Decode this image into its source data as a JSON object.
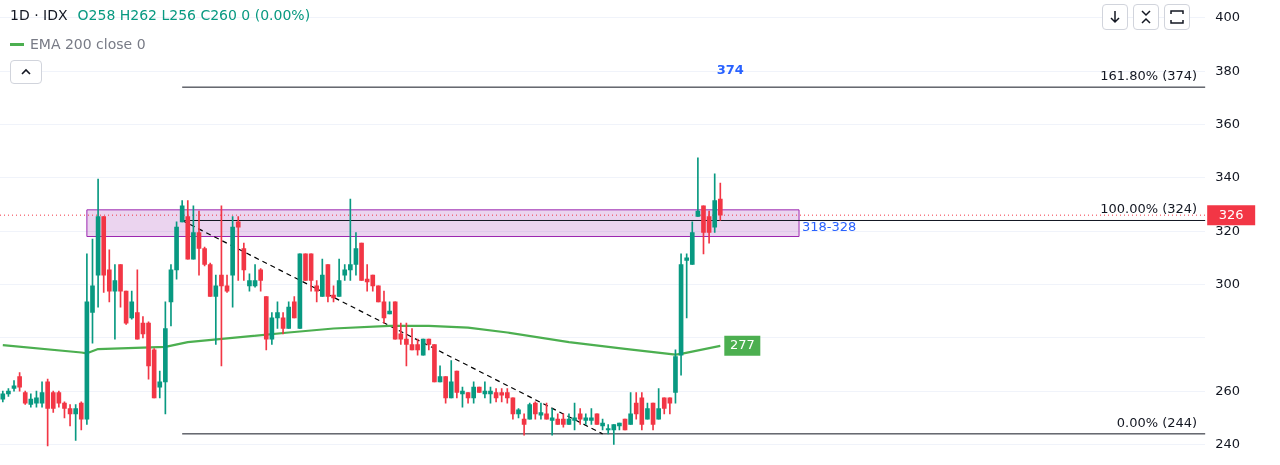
{
  "chart_data": {
    "type": "candlestick",
    "title": "1D · IDX",
    "subtitle": "O258 H262 L256 C260 0 (0.00%)",
    "categories": [
      null,
      null,
      null,
      null,
      null,
      null,
      null,
      null,
      null,
      null,
      null,
      null,
      null,
      null,
      null,
      null,
      null,
      null,
      null,
      null,
      null,
      null,
      null,
      null,
      null,
      null,
      null,
      null,
      null,
      null,
      null,
      null,
      null,
      null,
      null,
      null,
      null,
      null,
      null,
      null,
      null,
      null,
      null,
      null,
      null,
      null,
      null,
      null,
      null,
      null,
      null,
      null,
      null,
      null,
      null,
      null,
      null,
      null,
      null,
      null,
      null,
      null,
      null,
      null,
      null,
      null,
      null,
      null,
      null,
      null,
      null,
      null,
      null,
      null,
      null,
      null,
      null,
      null,
      null,
      null,
      null,
      null,
      null,
      null,
      null,
      null,
      null,
      null,
      null,
      null,
      null,
      null,
      null,
      null,
      null,
      null,
      null,
      null,
      null,
      null,
      null,
      null,
      null,
      null,
      null,
      null,
      null,
      null,
      null,
      null,
      null,
      null,
      null,
      null,
      null,
      null,
      null,
      null,
      null,
      null,
      null,
      null,
      null,
      null,
      null,
      null,
      null,
      null,
      null,
      null,
      null,
      null,
      null,
      null,
      null,
      null,
      null,
      null,
      null,
      null,
      null,
      null,
      null,
      null,
      null,
      null,
      null,
      null,
      null,
      null,
      null,
      null,
      null,
      null,
      null,
      null,
      null,
      null,
      null,
      null,
      null,
      null,
      null,
      null,
      null,
      null,
      null,
      null,
      null,
      null,
      null,
      null,
      null,
      null,
      null,
      null,
      null,
      null,
      null,
      null,
      null,
      null,
      null,
      null,
      null,
      null,
      null,
      null,
      null,
      null,
      null,
      null,
      null,
      null,
      null,
      null,
      null,
      null,
      null,
      null,
      null,
      null,
      null,
      null,
      null,
      null,
      null,
      null,
      null,
      null,
      null,
      null,
      null,
      null,
      null
    ],
    "ohlc": [
      [
        257,
        260,
        256,
        259
      ],
      [
        259,
        261,
        258,
        260
      ],
      [
        261,
        264,
        260,
        262
      ],
      [
        265.5,
        267,
        260,
        261.5
      ],
      [
        259.5,
        260,
        255,
        255.5
      ],
      [
        255,
        259,
        254,
        257
      ],
      [
        255.5,
        260,
        254,
        257.5
      ],
      [
        255.5,
        263.5,
        254,
        259.5
      ],
      [
        263.5,
        264.5,
        239.5,
        253.5
      ],
      [
        259.5,
        260,
        252,
        253.5
      ],
      [
        259.5,
        260,
        254,
        255.5
      ],
      [
        255.5,
        256,
        250,
        253.5
      ],
      [
        253.5,
        255,
        247,
        251.5
      ],
      [
        251.5,
        255,
        241.5,
        253.5
      ],
      [
        255.5,
        256,
        245.5,
        249.5
      ],
      [
        249.5,
        311.5,
        247.5,
        293.5
      ],
      [
        289.5,
        317,
        278,
        299.5
      ],
      [
        303.5,
        339.5,
        291.5,
        325.5
      ],
      [
        325.5,
        325.5,
        297,
        303.5
      ],
      [
        305.5,
        313,
        293.5,
        297.5
      ],
      [
        297.5,
        307.5,
        279.5,
        301.5
      ],
      [
        307.5,
        307.5,
        291.5,
        297.5
      ],
      [
        297.5,
        297.5,
        285,
        285.5
      ],
      [
        287.5,
        297.5,
        287,
        293.5
      ],
      [
        289.5,
        305.5,
        279.5,
        279.5
      ],
      [
        285.5,
        288,
        280,
        281.5
      ],
      [
        285.5,
        286,
        264.5,
        269.5
      ],
      [
        275.5,
        276,
        257.5,
        257.5
      ],
      [
        261.5,
        267.5,
        257.5,
        263.5
      ],
      [
        263.5,
        293.5,
        251.5,
        283.5
      ],
      [
        293.5,
        307.5,
        284.5,
        305.5
      ],
      [
        305.5,
        323.5,
        302,
        321.5
      ],
      [
        323.5,
        331.5,
        323.5,
        329.5
      ],
      [
        325.5,
        331.5,
        309.5,
        309.5
      ],
      [
        309.5,
        329.5,
        309.5,
        319.5
      ],
      [
        319.5,
        327.5,
        303.5,
        313.5
      ],
      [
        313.5,
        314,
        307,
        307.5
      ],
      [
        307.5,
        308,
        295.5,
        295.5
      ],
      [
        295.5,
        303.5,
        277.5,
        299.5
      ],
      [
        303.5,
        329.5,
        269.5,
        299.5
      ],
      [
        299.5,
        303.5,
        297,
        297.5
      ],
      [
        303.5,
        325.5,
        291.5,
        321.5
      ],
      [
        323.5,
        325.5,
        301.5,
        321.5
      ],
      [
        313.5,
        315.5,
        301.5,
        305.5
      ],
      [
        299.5,
        304,
        297.5,
        301.5
      ],
      [
        299.5,
        307.5,
        299,
        301.5
      ],
      [
        305.5,
        306,
        297.5,
        301.5
      ],
      [
        295.5,
        295.5,
        275.5,
        279.5
      ],
      [
        279.5,
        289.5,
        277.5,
        287.5
      ],
      [
        287.5,
        293.5,
        283.5,
        289.5
      ],
      [
        287.5,
        289.5,
        281.5,
        283.5
      ],
      [
        283.5,
        293.5,
        283.5,
        291.5
      ],
      [
        293.5,
        295.5,
        287.5,
        287.5
      ],
      [
        283.5,
        311.5,
        283.5,
        311.5
      ],
      [
        311.5,
        311.5,
        301.5,
        301.5
      ],
      [
        311.5,
        311.5,
        297.5,
        301.5
      ],
      [
        299.5,
        301.5,
        293.5,
        297.5
      ],
      [
        295.5,
        309.5,
        295.5,
        303.5
      ],
      [
        307.5,
        307.5,
        293.5,
        295.5
      ],
      [
        296,
        299.5,
        293.5,
        295
      ],
      [
        295.5,
        309.5,
        295.5,
        301.5
      ],
      [
        303.5,
        307.5,
        301.5,
        305.5
      ],
      [
        305.5,
        332,
        301.5,
        307.5
      ],
      [
        307.5,
        319.5,
        303.5,
        313.5
      ],
      [
        315.5,
        315.5,
        301.5,
        301.5
      ],
      [
        302,
        307.5,
        297.5,
        301
      ],
      [
        303.5,
        303.5,
        297.5,
        299.5
      ],
      [
        299.5,
        299.5,
        293.5,
        293.5
      ],
      [
        293.5,
        297.5,
        285.5,
        287.5
      ],
      [
        289,
        293.5,
        289,
        290
      ],
      [
        293.5,
        293.5,
        279.5,
        279.5
      ],
      [
        281.5,
        285.5,
        277.5,
        279.5
      ],
      [
        279.5,
        285.5,
        269.5,
        277.5
      ],
      [
        277.5,
        283.5,
        275.5,
        275.5
      ],
      [
        277.5,
        279.5,
        273.5,
        275.5
      ],
      [
        273.5,
        279.5,
        273.5,
        279.5
      ],
      [
        279.5,
        279.5,
        275.5,
        277.5
      ],
      [
        277.5,
        277.5,
        263.5,
        263.5
      ],
      [
        263.5,
        269.5,
        263.5,
        265.5
      ],
      [
        265.5,
        265.5,
        255.5,
        257.5
      ],
      [
        257.5,
        271.5,
        257.5,
        263.5
      ],
      [
        267.5,
        267.5,
        257.5,
        259.5
      ],
      [
        259,
        261.5,
        254,
        260
      ],
      [
        259.5,
        259.5,
        255.5,
        257.5
      ],
      [
        257.5,
        263.5,
        255.5,
        261.5
      ],
      [
        261.5,
        261.5,
        259.5,
        259.5
      ],
      [
        259,
        263.5,
        257.5,
        260
      ],
      [
        259,
        261.5,
        255.5,
        260
      ],
      [
        259.5,
        261,
        256,
        257.5
      ],
      [
        259.5,
        261,
        256,
        258.5
      ],
      [
        259.5,
        261,
        255.5,
        257.5
      ],
      [
        257.5,
        257.5,
        249.5,
        251.5
      ],
      [
        251.5,
        253.5,
        250,
        253
      ],
      [
        249.5,
        251.5,
        243.5,
        247.5
      ],
      [
        249.5,
        255.5,
        249.5,
        255
      ],
      [
        255.5,
        256,
        249.5,
        251.5
      ],
      [
        251,
        255.5,
        249.5,
        252
      ],
      [
        251.5,
        255.5,
        249.5,
        249.5
      ],
      [
        249,
        253.5,
        243.5,
        250
      ],
      [
        249.5,
        251.5,
        247.5,
        247.5
      ],
      [
        249.5,
        251.5,
        246.5,
        247.5
      ],
      [
        247.5,
        251.5,
        247.5,
        249.5
      ],
      [
        249,
        255.5,
        245.5,
        250
      ],
      [
        251.5,
        253.5,
        247.5,
        249.5
      ],
      [
        249,
        251.5,
        247.5,
        250
      ],
      [
        249,
        253.5,
        247.5,
        250
      ],
      [
        251.5,
        251.5,
        247.5,
        247.5
      ],
      [
        247,
        249.5,
        245.5,
        248
      ],
      [
        245.5,
        247.5,
        244,
        246
      ],
      [
        245.5,
        247.5,
        240,
        247.5
      ],
      [
        247,
        248,
        245.5,
        248
      ],
      [
        249.5,
        249.5,
        245.5,
        245.5
      ],
      [
        247.5,
        259.5,
        247.5,
        251.5
      ],
      [
        255.5,
        259.5,
        249.5,
        251.5
      ],
      [
        257.5,
        259.5,
        245.5,
        247.5
      ],
      [
        249.5,
        255.5,
        249.5,
        253.5
      ],
      [
        255.5,
        255.5,
        245.5,
        247.5
      ],
      [
        249.5,
        261,
        249.5,
        253.5
      ],
      [
        257.5,
        257.5,
        251.5,
        253.5
      ],
      [
        257.5,
        257.5,
        251.5,
        255.5
      ],
      [
        259.5,
        275.5,
        255.5,
        273
      ],
      [
        273.5,
        311.5,
        266,
        307.5
      ],
      [
        309,
        311.5,
        287.5,
        310
      ],
      [
        307.5,
        323.5,
        307.5,
        319.5
      ],
      [
        325.5,
        347.5,
        325.5,
        327.5
      ],
      [
        329.5,
        329.5,
        311.5,
        319.5
      ],
      [
        325.5,
        327.5,
        315.5,
        319.5
      ],
      [
        321.5,
        341.5,
        319.5,
        331.5
      ],
      [
        332,
        338,
        324,
        326
      ],
      null,
      null,
      null,
      null,
      null,
      null,
      null,
      null,
      null,
      null,
      null,
      null,
      null,
      null,
      null,
      null,
      null,
      null,
      null,
      null,
      null,
      null,
      null,
      null,
      null,
      null,
      null,
      null,
      null,
      null,
      null,
      null,
      null,
      null,
      null,
      null,
      null,
      null,
      null,
      null,
      null,
      null,
      null,
      null,
      null,
      null,
      null,
      null,
      null,
      null,
      null,
      null,
      null,
      null,
      null,
      null,
      null,
      null,
      null,
      null,
      null,
      null,
      null,
      null,
      null,
      null,
      null,
      null,
      null,
      null,
      null,
      null,
      null,
      null,
      null,
      null,
      null,
      null,
      null,
      null,
      null,
      null,
      null,
      null,
      null,
      null
    ],
    "series": [
      {
        "type": "line",
        "name": "EMA 200 close 0",
        "color": "#4caf50",
        "values": [
          277.3,
          null,
          null,
          null,
          null,
          null,
          null,
          null,
          null,
          null,
          null,
          null,
          null,
          null,
          274.5,
          274.2,
          null,
          275.8,
          null,
          null,
          null,
          null,
          null,
          null,
          null,
          null,
          null,
          null,
          null,
          276.6,
          null,
          null,
          null,
          278.4,
          null,
          null,
          null,
          null,
          null,
          null,
          null,
          null,
          null,
          null,
          null,
          null,
          null,
          null,
          null,
          null,
          null,
          282,
          null,
          null,
          null,
          null,
          null,
          null,
          null,
          283.5,
          null,
          null,
          null,
          null,
          null,
          null,
          null,
          null,
          null,
          284.5,
          null,
          null,
          null,
          null,
          null,
          null,
          284.5,
          null,
          null,
          null,
          null,
          null,
          null,
          283.8,
          null,
          null,
          null,
          null,
          null,
          null,
          282,
          null,
          null,
          null,
          null,
          null,
          null,
          null,
          null,
          null,
          null,
          278.4,
          null,
          null,
          null,
          null,
          null,
          null,
          null,
          null,
          null,
          275.9,
          null,
          null,
          null,
          null,
          null,
          null,
          null,
          null,
          273.7,
          274,
          null,
          null,
          null,
          null,
          null,
          null,
          277,
          null,
          null,
          null,
          null,
          null,
          null,
          null,
          null,
          null,
          null,
          null,
          null,
          null,
          null,
          null,
          null,
          null,
          null,
          null,
          null,
          null,
          null,
          null,
          null,
          null,
          null,
          null,
          null,
          null,
          null,
          null,
          null,
          null,
          null,
          null,
          null,
          null,
          null,
          null,
          null,
          null,
          null,
          null,
          null,
          null,
          null,
          null,
          null,
          null,
          null,
          null,
          null,
          null,
          null,
          null,
          null,
          null,
          null,
          null,
          null,
          null,
          null,
          null,
          null,
          null,
          null,
          null,
          null,
          null,
          null,
          null,
          null,
          null,
          null,
          null,
          null,
          null,
          null,
          null,
          null,
          null,
          null,
          null,
          null,
          null,
          null
        ],
        "value_labels": [
          null,
          null,
          null,
          null,
          null,
          null,
          null,
          null,
          null,
          null,
          null,
          null,
          null,
          null,
          null,
          null,
          null,
          null,
          null,
          null,
          null,
          null,
          null,
          null,
          null,
          null,
          null,
          null,
          null,
          null,
          null,
          null,
          null,
          null,
          null,
          null,
          null,
          null,
          null,
          null,
          null,
          null,
          null,
          null,
          null,
          null,
          null,
          null,
          null,
          null,
          null,
          null,
          null,
          null,
          null,
          null,
          null,
          null,
          null,
          null,
          null,
          null,
          null,
          null,
          null,
          null,
          null,
          null,
          null,
          null,
          null,
          null,
          null,
          null,
          null,
          null,
          null,
          null,
          null,
          null,
          null,
          null,
          null,
          null,
          null,
          null,
          null,
          null,
          null,
          null,
          null,
          null,
          null,
          null,
          null,
          null,
          null,
          null,
          null,
          null,
          null,
          null,
          null,
          null,
          null,
          null,
          null,
          null,
          null,
          null,
          null,
          null,
          null,
          null,
          null,
          null,
          null,
          null,
          null,
          null,
          null,
          null,
          null,
          null,
          null,
          null,
          null,
          null,
          "277",
          null,
          null,
          null,
          null,
          null,
          null,
          null,
          null,
          null,
          null,
          null,
          null,
          null,
          null,
          null,
          null,
          null,
          null,
          null,
          null,
          null,
          null,
          null,
          null,
          null,
          null,
          null,
          null,
          null,
          null,
          null,
          null,
          null,
          null,
          null,
          null,
          null,
          null,
          null,
          null,
          null,
          null,
          null,
          null,
          null,
          null,
          null,
          null,
          null,
          null,
          null,
          null,
          null,
          null,
          null,
          null,
          null,
          null,
          null,
          null,
          null,
          null,
          null,
          null,
          null,
          null,
          null,
          null,
          null,
          null,
          null,
          null,
          null,
          null,
          null,
          null,
          null,
          null,
          null,
          null,
          null,
          null,
          null,
          null,
          null,
          null
        ]
      },
      {
        "type": "line",
        "color": "#000000",
        "line_style": "dashed",
        "values": [
          null,
          null,
          null,
          null,
          null,
          null,
          null,
          null,
          null,
          null,
          null,
          null,
          null,
          null,
          null,
          null,
          null,
          null,
          null,
          null,
          null,
          null,
          null,
          null,
          null,
          null,
          null,
          null,
          null,
          null,
          null,
          null,
          324,
          null,
          null,
          null,
          null,
          null,
          null,
          null,
          null,
          null,
          null,
          null,
          null,
          null,
          null,
          null,
          null,
          null,
          null,
          null,
          null,
          null,
          null,
          null,
          null,
          null,
          null,
          null,
          null,
          null,
          null,
          null,
          null,
          null,
          null,
          null,
          null,
          null,
          null,
          null,
          null,
          null,
          null,
          null,
          null,
          null,
          null,
          null,
          null,
          null,
          null,
          null,
          null,
          null,
          null,
          null,
          null,
          null,
          null,
          null,
          null,
          null,
          null,
          null,
          null,
          null,
          null,
          null,
          null,
          null,
          null,
          null,
          null,
          null,
          null,
          244,
          null,
          null,
          null,
          null,
          null,
          null,
          null,
          null,
          null,
          null,
          null,
          null,
          null,
          null,
          null,
          null,
          null,
          null,
          null,
          null,
          null,
          null,
          null,
          null,
          null,
          null,
          null,
          null,
          null,
          null,
          null,
          null,
          null,
          null,
          null,
          null,
          null,
          null,
          null,
          null,
          null,
          null,
          null,
          null,
          null,
          null,
          null,
          null,
          null,
          null,
          null,
          null,
          null,
          null,
          null,
          null,
          null,
          null,
          null,
          null,
          null,
          null,
          null,
          null,
          null,
          null,
          null,
          null,
          null,
          null,
          null,
          null,
          null,
          null,
          null,
          null,
          null,
          null,
          null,
          null,
          null,
          null,
          null,
          null,
          null,
          null,
          null,
          null,
          null,
          null,
          null,
          null,
          null,
          null,
          null,
          null,
          null,
          null,
          null,
          null,
          null,
          null,
          null,
          null,
          null,
          null,
          null
        ]
      }
    ],
    "ylim": [
      239,
      400
    ],
    "yticks": [
      240,
      260,
      {
        "value": 280,
        "label": null
      },
      300,
      320,
      340,
      360,
      380,
      400
    ],
    "grid": "y",
    "legend": "top left",
    "ref_lines": [
      {
        "axis": "y",
        "value": 374,
        "label": "161.80% (374)",
        "color": "#131722"
      },
      {
        "axis": "y",
        "value": 324,
        "label": "100.00% (324)",
        "color": "#131722"
      },
      {
        "axis": "y",
        "value": 244,
        "label": "0.00% (244)",
        "color": "#131722"
      },
      {
        "axis": "y",
        "value": 326,
        "label": "326",
        "color": "#f23645",
        "line_style": "dotted"
      }
    ],
    "bands": [
      {
        "axis": "y",
        "from": 318,
        "to": 328,
        "label": "318-328",
        "color": "#9c27b0"
      }
    ],
    "annotations": [
      {
        "text": "374",
        "y": 374
      }
    ]
  }
}
